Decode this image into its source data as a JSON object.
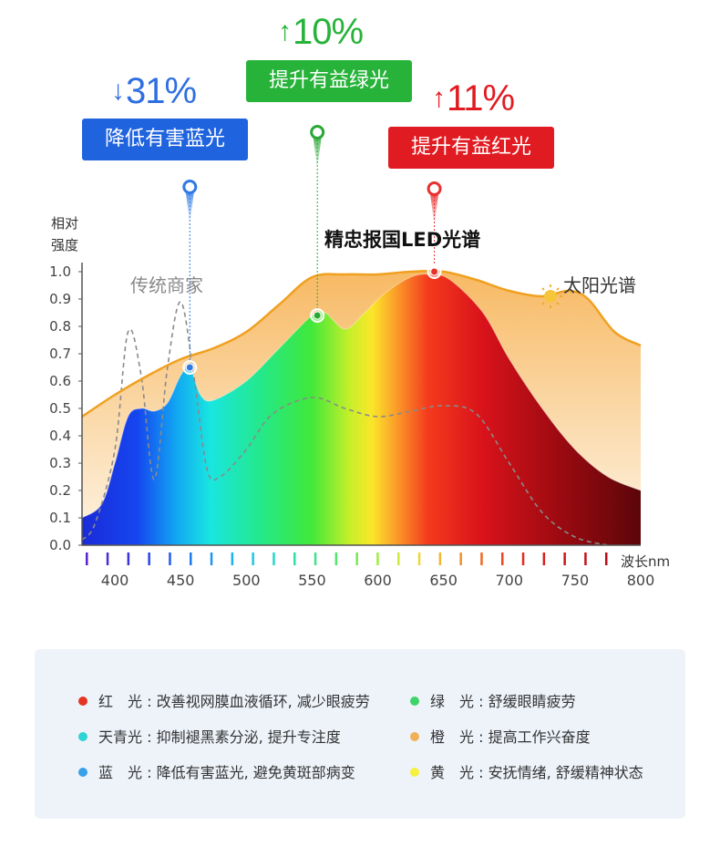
{
  "chart_data": {
    "type": "area",
    "title": "精忠报国LED光谱",
    "ylabel_line1": "相对",
    "ylabel_line2": "强度",
    "xlabel": "波长nm",
    "xlim": [
      375,
      800
    ],
    "ylim": [
      0,
      1.0
    ],
    "yticks": [
      "1.0",
      "0.9",
      "0.8",
      "0.7",
      "0.6",
      "0.5",
      "0.4",
      "0.3",
      "0.2",
      "0.1",
      "0.0"
    ],
    "xticks": [
      "400",
      "450",
      "500",
      "550",
      "600",
      "650",
      "700",
      "750",
      "800"
    ],
    "series": [
      {
        "name": "太阳光谱",
        "color": "#f0a020",
        "points": [
          [
            375,
            0.47
          ],
          [
            400,
            0.55
          ],
          [
            425,
            0.62
          ],
          [
            450,
            0.68
          ],
          [
            475,
            0.72
          ],
          [
            500,
            0.78
          ],
          [
            525,
            0.88
          ],
          [
            550,
            0.98
          ],
          [
            575,
            0.99
          ],
          [
            600,
            0.99
          ],
          [
            625,
            1.0
          ],
          [
            650,
            1.0
          ],
          [
            675,
            0.97
          ],
          [
            700,
            0.93
          ],
          [
            725,
            0.91
          ],
          [
            745,
            0.93
          ],
          [
            760,
            0.9
          ],
          [
            780,
            0.78
          ],
          [
            800,
            0.73
          ]
        ]
      },
      {
        "name": "传统商家",
        "color": "#8a8a8a",
        "points": [
          [
            375,
            0.02
          ],
          [
            385,
            0.08
          ],
          [
            400,
            0.35
          ],
          [
            410,
            0.78
          ],
          [
            420,
            0.62
          ],
          [
            430,
            0.24
          ],
          [
            440,
            0.65
          ],
          [
            450,
            0.89
          ],
          [
            460,
            0.62
          ],
          [
            470,
            0.28
          ],
          [
            480,
            0.25
          ],
          [
            500,
            0.35
          ],
          [
            520,
            0.48
          ],
          [
            550,
            0.54
          ],
          [
            575,
            0.5
          ],
          [
            600,
            0.47
          ],
          [
            625,
            0.49
          ],
          [
            650,
            0.51
          ],
          [
            675,
            0.48
          ],
          [
            700,
            0.3
          ],
          [
            725,
            0.12
          ],
          [
            750,
            0.03
          ],
          [
            775,
            0.0
          ]
        ]
      },
      {
        "points": [
          [
            375,
            0.1
          ],
          [
            390,
            0.15
          ],
          [
            400,
            0.3
          ],
          [
            410,
            0.47
          ],
          [
            420,
            0.5
          ],
          [
            430,
            0.49
          ],
          [
            440,
            0.52
          ],
          [
            450,
            0.62
          ],
          [
            457,
            0.65
          ],
          [
            465,
            0.55
          ],
          [
            475,
            0.53
          ],
          [
            500,
            0.6
          ],
          [
            525,
            0.72
          ],
          [
            550,
            0.84
          ],
          [
            560,
            0.85
          ],
          [
            575,
            0.79
          ],
          [
            590,
            0.85
          ],
          [
            605,
            0.92
          ],
          [
            625,
            0.98
          ],
          [
            640,
            0.99
          ],
          [
            655,
            0.97
          ],
          [
            680,
            0.85
          ],
          [
            700,
            0.68
          ],
          [
            725,
            0.5
          ],
          [
            750,
            0.35
          ],
          [
            775,
            0.25
          ],
          [
            800,
            0.2
          ]
        ]
      }
    ],
    "markers": [
      {
        "x": 457,
        "y": 0.65,
        "color": "#2f7ae5"
      },
      {
        "x": 554,
        "y": 0.84,
        "color": "#2aa836"
      },
      {
        "x": 643,
        "y": 1.0,
        "color": "#e83030"
      }
    ]
  },
  "callouts": {
    "blue": {
      "pct": "31%",
      "label": "降低有害蓝光",
      "color": "#1f63de"
    },
    "green": {
      "pct": "10%",
      "label": "提升有益绿光",
      "color": "#27b33a"
    },
    "red": {
      "pct": "11%",
      "label": "提升有益红光",
      "color": "#e11b22"
    }
  },
  "legend": [
    {
      "color": "#e53421",
      "text": "红　光 : 改善视网膜血液循环, 减少眼疲劳"
    },
    {
      "color": "#3ed46a",
      "text": "绿　光 : 舒缓眼睛疲劳"
    },
    {
      "color": "#2fd4d4",
      "text": "天青光 : 抑制褪黑素分泌, 提升专注度"
    },
    {
      "color": "#f0b057",
      "text": "橙　光 : 提高工作兴奋度"
    },
    {
      "color": "#3aa0e8",
      "text": "蓝　光 : 降低有害蓝光, 避免黄斑部病变"
    },
    {
      "color": "#f6f040",
      "text": "黄　光 : 安抚情绪, 舒缓精神状态"
    }
  ]
}
